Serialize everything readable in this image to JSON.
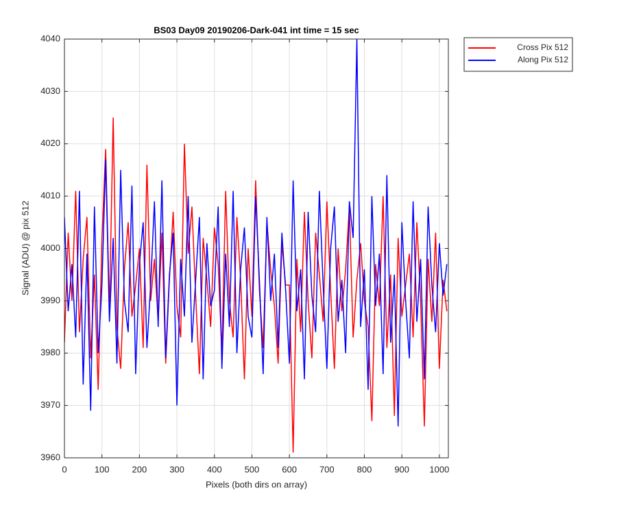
{
  "chart_data": {
    "type": "line",
    "title": "BS03 Day09 20190206-Dark-041 int time = 15 sec",
    "xlabel": "Pixels (both dirs on array)",
    "ylabel": "Signal (ADU) @ pix 512",
    "x": [
      0,
      10,
      20,
      30,
      40,
      50,
      60,
      70,
      80,
      90,
      100,
      110,
      120,
      130,
      140,
      150,
      160,
      170,
      180,
      190,
      200,
      210,
      220,
      230,
      240,
      250,
      260,
      270,
      280,
      290,
      300,
      310,
      320,
      330,
      340,
      350,
      360,
      370,
      380,
      390,
      400,
      410,
      420,
      430,
      440,
      450,
      460,
      470,
      480,
      490,
      500,
      510,
      520,
      530,
      540,
      550,
      560,
      570,
      580,
      590,
      600,
      610,
      620,
      630,
      640,
      650,
      660,
      670,
      680,
      690,
      700,
      710,
      720,
      730,
      740,
      750,
      760,
      770,
      780,
      790,
      800,
      810,
      820,
      830,
      840,
      850,
      860,
      870,
      880,
      890,
      900,
      910,
      920,
      930,
      940,
      950,
      960,
      970,
      980,
      990,
      1000,
      1010,
      1020
    ],
    "series": [
      {
        "name": "Cross Pix 512",
        "color": "#ff0000",
        "values": [
          3982,
          4003,
          3990,
          4011,
          3984,
          3998,
          4006,
          3979,
          3995,
          3973,
          4002,
          4019,
          3988,
          4025,
          3985,
          3977,
          3996,
          4005,
          3987,
          3993,
          4000,
          3981,
          4016,
          3990,
          3998,
          3986,
          4003,
          3978,
          3994,
          4007,
          3989,
          3983,
          4020,
          3999,
          4008,
          3991,
          3976,
          4002,
          3994,
          3985,
          4004,
          3997,
          3980,
          4011,
          3990,
          3983,
          4006,
          3994,
          3975,
          4000,
          3987,
          4013,
          3992,
          3981,
          4005,
          3996,
          3989,
          3978,
          4001,
          3993,
          3993,
          3961,
          3998,
          3984,
          4007,
          3990,
          3979,
          4003,
          3995,
          3986,
          4009,
          3992,
          3977,
          4000,
          3988,
          3996,
          4008,
          3983,
          3994,
          4001,
          3990,
          3985,
          3967,
          3997,
          3989,
          4010,
          3981,
          3995,
          3968,
          4002,
          3987,
          3993,
          3999,
          3983,
          4005,
          3990,
          3966,
          3998,
          3986,
          4003,
          3977,
          3994,
          3988
        ]
      },
      {
        "name": "Along Pix 512",
        "color": "#0000ff",
        "values": [
          4006,
          3988,
          3997,
          3983,
          4011,
          3974,
          3999,
          3969,
          4008,
          3980,
          3993,
          4017,
          3986,
          4002,
          3978,
          4015,
          3990,
          3984,
          4012,
          3976,
          3997,
          4005,
          3981,
          3993,
          4009,
          3985,
          4013,
          3979,
          3995,
          4003,
          3970,
          3998,
          3987,
          4010,
          3982,
          3994,
          4006,
          3975,
          4001,
          3989,
          3992,
          4008,
          3977,
          3999,
          3985,
          4011,
          3980,
          3996,
          4004,
          3987,
          3983,
          4010,
          3994,
          3976,
          4006,
          3990,
          3999,
          3981,
          4003,
          3992,
          3978,
          4013,
          3988,
          3996,
          3975,
          4007,
          3991,
          3984,
          4011,
          3993,
          3977,
          4000,
          4008,
          3986,
          3994,
          3980,
          4009,
          4002,
          4040,
          3985,
          3996,
          3973,
          4010,
          3989,
          3999,
          3976,
          4014,
          3982,
          3995,
          3966,
          4005,
          3990,
          3979,
          4009,
          3986,
          3998,
          3975,
          4008,
          3993,
          3984,
          4001,
          3991,
          3997
        ]
      }
    ],
    "xlim": [
      0,
      1024
    ],
    "ylim": [
      3960,
      4040
    ],
    "xticks": [
      0,
      100,
      200,
      300,
      400,
      500,
      600,
      700,
      800,
      900,
      1000
    ],
    "yticks": [
      3960,
      3970,
      3980,
      3990,
      4000,
      4010,
      4020,
      4030,
      4040
    ],
    "grid": true,
    "legend": "outside-top-right"
  }
}
